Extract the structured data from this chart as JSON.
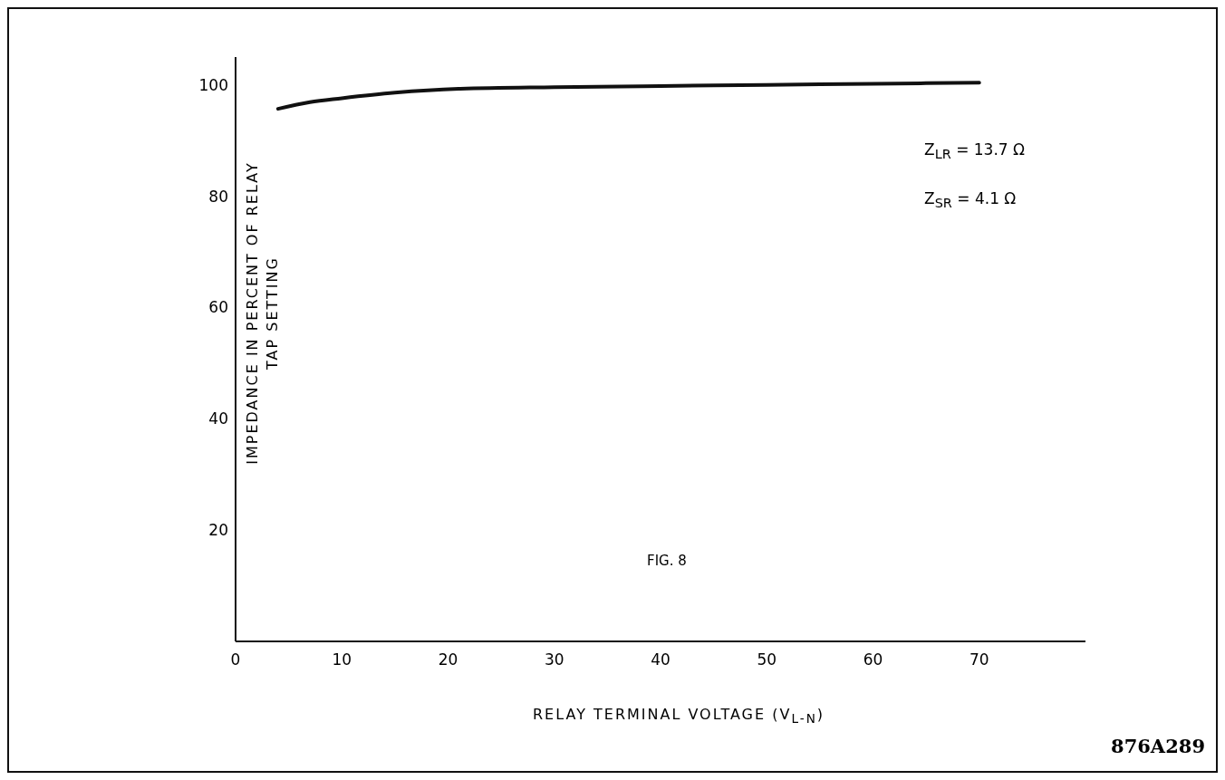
{
  "chart_data": {
    "type": "line",
    "xlabel": "RELAY TERMINAL VOLTAGE  (V$_{L-N}$)",
    "ylabel": "IMPEDANCE IN PERCENT OF RELAY\nTAP SETTING",
    "x": [
      4,
      7,
      10,
      15,
      21,
      30,
      40,
      50,
      60,
      70
    ],
    "series": [
      {
        "color": "#111111",
        "values": [
          95.7,
          96.9,
          97.6,
          98.6,
          99.3,
          99.6,
          99.8,
          100,
          100.2,
          100.4
        ]
      }
    ],
    "xlim": [
      0,
      80
    ],
    "xticks": [
      0,
      10,
      20,
      30,
      40,
      50,
      60,
      70
    ],
    "ylim": [
      0,
      105
    ],
    "yticks": [
      20,
      40,
      60,
      80,
      100
    ],
    "grid": false,
    "marker": "none",
    "line_style": "solid",
    "annotations": [
      "Z$_{LR}$ = 13.7 Ω",
      "Z$_{SR}$ = 4.1 Ω",
      "FIG. 8",
      "876A289"
    ]
  }
}
